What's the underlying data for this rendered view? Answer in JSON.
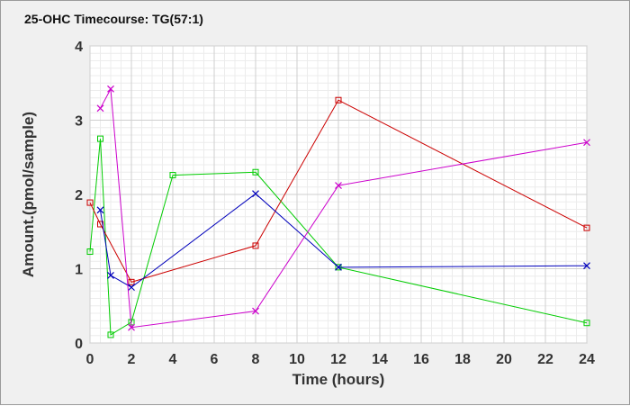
{
  "chart_data": {
    "type": "line",
    "title": "25-OHC Timecourse: TG(57:1)",
    "xlabel": "Time (hours)",
    "ylabel": "Amount.(pmol/sample)",
    "xlim": [
      0,
      24
    ],
    "ylim": [
      0,
      4
    ],
    "xticks": [
      "0",
      "2",
      "4",
      "6",
      "8",
      "10",
      "12",
      "14",
      "16",
      "18",
      "20",
      "22",
      "24"
    ],
    "yticks": [
      "0",
      "1",
      "2",
      "3",
      "4"
    ],
    "grid": true,
    "series": [
      {
        "color": "#00cc00",
        "marker": "square",
        "x": [
          0,
          0.5,
          1,
          2,
          4,
          8,
          12,
          24
        ],
        "y": [
          1.23,
          2.75,
          0.11,
          0.28,
          2.26,
          2.3,
          1.02,
          0.27
        ]
      },
      {
        "color": "#cc0000",
        "marker": "square",
        "x": [
          0,
          0.5,
          2,
          8,
          12,
          24
        ],
        "y": [
          1.89,
          1.6,
          0.82,
          1.31,
          3.27,
          1.55
        ]
      },
      {
        "color": "#0000bb",
        "marker": "x",
        "x": [
          0.5,
          1,
          2,
          8,
          12,
          24
        ],
        "y": [
          1.79,
          0.91,
          0.75,
          2.01,
          1.02,
          1.04
        ]
      },
      {
        "color": "#cc00cc",
        "marker": "x",
        "x": [
          0.5,
          1,
          2,
          8,
          12,
          24
        ],
        "y": [
          3.16,
          3.42,
          0.21,
          0.43,
          2.12,
          2.7
        ]
      }
    ]
  }
}
